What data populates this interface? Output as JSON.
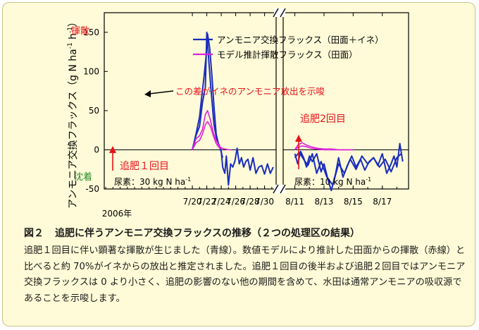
{
  "colors": {
    "observed": "#1a2dbd",
    "model": "#dd22dd",
    "red_text": "#e8101a",
    "green_text": "#2a8a2a",
    "axis": "#000000"
  },
  "chart_data": {
    "type": "line",
    "ylabel": "アンモニア交換フラックス（g N ha",
    "ylabel_exp": "-1",
    "ylabel_unit2": " h",
    "ylabel_exp2": "-1",
    "ylabel_close": "）",
    "ylim": [
      -50,
      175
    ],
    "yticks": [
      -50,
      0,
      50,
      100,
      150
    ],
    "y_top_label": "揮散",
    "y_bottom_label": "沈着",
    "year_label": "2006年",
    "legend": [
      {
        "name": "アンモニア交換フラックス（田面＋イネ）",
        "color_key": "observed"
      },
      {
        "name": "モデル推計揮散フラックス（田面）",
        "color_key": "model"
      }
    ],
    "panels": [
      {
        "xlim": [
          7.8,
          31.6
        ],
        "ticks": [
          {
            "x": 20,
            "label": "7/20"
          },
          {
            "x": 22,
            "label": "7/22"
          },
          {
            "x": 24,
            "label": "7/24"
          },
          {
            "x": 26,
            "label": "7/26"
          },
          {
            "x": 28,
            "label": "7/28"
          },
          {
            "x": 30,
            "label": "7/30"
          }
        ],
        "series": [
          {
            "name": "アンモニア交換フラックス（田面＋イネ）",
            "color_key": "observed",
            "x": [
              20,
              20.5,
              21,
              21.3,
              21.6,
              21.9,
              22.1,
              22.4,
              22.7,
              23.0,
              23.3,
              23.6,
              24.0,
              24.2,
              24.5,
              24.7,
              25.0,
              25.3,
              25.6,
              25.9,
              26.2,
              26.5,
              26.8,
              27.1,
              27.4,
              27.7,
              28.0,
              28.4,
              28.8,
              29.2,
              29.6,
              30.0,
              30.4,
              30.8,
              31.2
            ],
            "values": [
              0,
              20,
              42,
              68,
              92,
              120,
              148,
              130,
              95,
              55,
              20,
              8,
              -2,
              -22,
              -30,
              -8,
              -45,
              -18,
              -22,
              -14,
              2,
              -18,
              -10,
              -22,
              -15,
              -12,
              -26,
              -10,
              -30,
              -22,
              -20,
              -31,
              -18,
              -30,
              -22
            ]
          },
          {
            "name": "アンモニア交換フラックス（田面＋イネ） 2",
            "color_key": "observed",
            "x": [
              20,
              20.5,
              21,
              21.4,
              21.8,
              22.0,
              22.3,
              22.6,
              23.0,
              23.4,
              23.8,
              24.2
            ],
            "values": [
              0,
              18,
              30,
              60,
              80,
              150,
              110,
              75,
              32,
              12,
              4,
              -10
            ]
          },
          {
            "name": "モデル推計揮散フラックス（田面）",
            "color_key": "model",
            "x": [
              20,
              20.5,
              21,
              21.4,
              21.8,
              22.1,
              22.5,
              22.9,
              23.3,
              23.7,
              24.1,
              24.5,
              25.0,
              25.4
            ],
            "values": [
              0,
              14,
              18,
              26,
              45,
              50,
              38,
              22,
              12,
              5,
              2,
              1,
              0,
              0
            ]
          },
          {
            "name": "モデル推計揮散フラックス（田面） 2",
            "color_key": "model",
            "x": [
              20,
              20.5,
              21,
              21.4,
              21.8,
              22.1,
              22.5,
              22.9,
              23.3,
              23.7,
              24.1
            ],
            "values": [
              0,
              9,
              12,
              20,
              32,
              36,
              30,
              18,
              8,
              3,
              1
            ]
          }
        ],
        "annotations": [
          {
            "text": "この差がイネのアンモニア放出を示唆",
            "color_key": "red_text"
          },
          {
            "text": "追肥１回目",
            "color_key": "red_text"
          },
          {
            "text": "尿素：30 kg N ha",
            "exp": "-1",
            "color_key": "axis"
          }
        ]
      },
      {
        "xlim": [
          10.2,
          18.8
        ],
        "ticks": [
          {
            "x": 11,
            "label": "8/11"
          },
          {
            "x": 13,
            "label": "8/13"
          },
          {
            "x": 15,
            "label": "8/15"
          },
          {
            "x": 17,
            "label": "8/17"
          }
        ],
        "series": [
          {
            "name": "アンモニア交換フラックス（田面＋イネ）",
            "color_key": "observed",
            "x": [
              11,
              11.2,
              11.4,
              11.6,
              11.8,
              12.0,
              12.2,
              12.5,
              12.8,
              13.0,
              13.3,
              13.5,
              13.8,
              14.0,
              14.3,
              14.6,
              14.9,
              15.2,
              15.5,
              15.8,
              16.1,
              16.4,
              16.7,
              17.0,
              17.3,
              17.6,
              17.8,
              18.0,
              18.2,
              18.4
            ],
            "values": [
              -5,
              -18,
              -2,
              -10,
              -22,
              -8,
              -15,
              -5,
              -28,
              -18,
              -40,
              -52,
              -30,
              -10,
              -35,
              -20,
              -8,
              -22,
              -12,
              -26,
              -15,
              -10,
              -20,
              -5,
              -30,
              -18,
              -8,
              -22,
              8,
              -15
            ]
          },
          {
            "name": "アンモニア交換フラックス（田面＋イネ） 2",
            "color_key": "observed",
            "x": [
              11,
              11.3,
              11.6,
              11.9,
              12.2,
              12.5,
              12.8,
              13.2,
              13.6,
              14.0,
              14.4,
              14.8,
              15.2,
              15.6,
              16.0,
              16.4,
              16.8,
              17.2,
              17.6,
              18.0,
              18.3
            ],
            "values": [
              -10,
              -3,
              -12,
              -20,
              -5,
              -30,
              -15,
              -35,
              -45,
              -18,
              -30,
              -12,
              -25,
              -8,
              -18,
              -10,
              -22,
              -12,
              -28,
              -10,
              -5
            ]
          },
          {
            "name": "モデル推計揮散フラックス（田面）",
            "color_key": "model",
            "x": [
              11,
              11.2,
              11.5,
              11.8,
              12.1,
              12.5,
              13.0,
              13.5,
              14.0,
              14.5,
              15.0
            ],
            "values": [
              0,
              6,
              9,
              6,
              4,
              2,
              1,
              1,
              0,
              0,
              0
            ]
          },
          {
            "name": "モデル推計揮散フラックス（田面） 2",
            "color_key": "model",
            "x": [
              11,
              11.2,
              11.5,
              11.8,
              12.1,
              12.5,
              13.0,
              13.5,
              14.0,
              14.5,
              15.0
            ],
            "values": [
              0,
              3,
              5,
              4,
              2,
              1,
              0,
              0,
              0,
              0,
              0
            ]
          }
        ],
        "annotations": [
          {
            "text": "追肥2回目",
            "color_key": "red_text"
          },
          {
            "text": "尿素：10 kg N ha",
            "exp": "-1",
            "color_key": "axis"
          }
        ]
      }
    ]
  },
  "caption": {
    "figure_number": "図２",
    "title": "追肥に伴うアンモニア交換フラックスの推移（２つの処理区の結果）",
    "body": "追肥１回目に伴い顕著な揮散が生じました（青線）。数値モデルにより推計した田面からの揮散（赤線）と比べると約 70%がイネからの放出と推定されました。追肥１回目の後半および追肥２回目ではアンモニア交換フラックスは 0 より小さく、追肥の影響のない他の期間を含めて、水田は通常アンモニアの吸収源であることを示唆します。"
  }
}
